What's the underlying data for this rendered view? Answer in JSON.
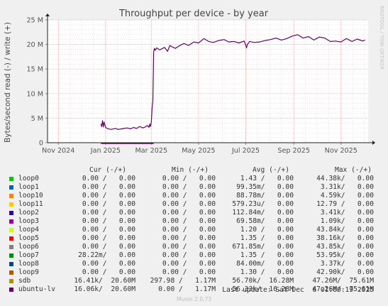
{
  "chart_data": {
    "type": "line",
    "title": "Throughput per device - by year",
    "ylabel": "Bytes/second read (-) / write (+)",
    "watermark": "RRDTOOL / TOBI OETIKER",
    "x_ticks": [
      "Nov 2024",
      "Jan 2025",
      "Mar 2025",
      "May 2025",
      "Jul 2025",
      "Sep 2025",
      "Nov 2025"
    ],
    "y_ticks": [
      "0",
      "5 M",
      "10 M",
      "15 M",
      "20 M",
      "25 M"
    ],
    "ylim": [
      0,
      25000000
    ],
    "xlim": [
      "2024-10-18",
      "2025-12-06"
    ],
    "grid": true,
    "series": [
      {
        "name": "ubuntu-lv",
        "color": "#660066",
        "x": [
          "2024-12-26",
          "2024-12-27",
          "2024-12-28",
          "2024-12-29",
          "2024-12-30",
          "2024-12-31",
          "2025-01-01",
          "2025-01-03",
          "2025-01-05",
          "2025-01-08",
          "2025-01-11",
          "2025-01-14",
          "2025-01-17",
          "2025-01-21",
          "2025-01-25",
          "2025-01-29",
          "2025-02-02",
          "2025-02-06",
          "2025-02-10",
          "2025-02-14",
          "2025-02-18",
          "2025-02-21",
          "2025-02-24",
          "2025-02-26",
          "2025-02-27",
          "2025-02-28",
          "2025-03-01",
          "2025-03-02",
          "2025-03-03",
          "2025-03-04",
          "2025-03-05",
          "2025-03-06",
          "2025-03-08",
          "2025-03-12",
          "2025-03-18",
          "2025-03-22",
          "2025-03-25",
          "2025-03-28",
          "2025-04-01",
          "2025-04-06",
          "2025-04-12",
          "2025-04-18",
          "2025-04-25",
          "2025-05-01",
          "2025-05-08",
          "2025-05-14",
          "2025-05-20",
          "2025-05-27",
          "2025-06-03",
          "2025-06-09",
          "2025-06-16",
          "2025-06-22",
          "2025-06-29",
          "2025-07-01",
          "2025-07-02",
          "2025-07-03",
          "2025-07-06",
          "2025-07-12",
          "2025-07-19",
          "2025-07-26",
          "2025-08-02",
          "2025-08-09",
          "2025-08-16",
          "2025-08-23",
          "2025-08-30",
          "2025-09-06",
          "2025-09-13",
          "2025-09-20",
          "2025-09-27",
          "2025-10-04",
          "2025-10-11",
          "2025-10-18",
          "2025-10-25",
          "2025-11-01",
          "2025-11-08",
          "2025-11-15",
          "2025-11-22",
          "2025-11-29",
          "2025-12-02"
        ],
        "values": [
          3800000,
          3300000,
          4500000,
          3200000,
          4200000,
          3600000,
          3100000,
          2900000,
          2800000,
          2700000,
          2800000,
          2900000,
          2700000,
          2800000,
          2900000,
          3000000,
          2800000,
          3100000,
          2900000,
          3300000,
          3000000,
          3200000,
          3500000,
          3100000,
          3800000,
          3300000,
          4100000,
          7000000,
          8500000,
          18500000,
          19200000,
          18800000,
          19300000,
          18900000,
          19400000,
          18600000,
          19800000,
          19500000,
          19200000,
          19700000,
          20200000,
          19800000,
          20500000,
          20300000,
          21200000,
          20600000,
          20400000,
          20800000,
          21000000,
          20500000,
          20600000,
          20300000,
          20700000,
          19800000,
          19300000,
          20000000,
          20600000,
          20400000,
          20500000,
          20800000,
          21000000,
          21300000,
          20900000,
          21200000,
          21700000,
          22000000,
          21300000,
          21600000,
          20900000,
          21500000,
          21300000,
          20600000,
          20700000,
          20500000,
          21200000,
          20600000,
          21100000,
          20700000,
          20900000
        ]
      }
    ]
  },
  "legend": {
    "headers": {
      "cur": "Cur (-/+)",
      "min": "Min (-/+)",
      "avg": "Avg (-/+)",
      "max": "Max (-/+)"
    },
    "rows": [
      {
        "name": "loop0",
        "color": "#00cc00",
        "cur": "0.00 /   0.00",
        "min": "0.00 /   0.00",
        "avg": "1.43 /   0.00",
        "max": "44.38k/   0.00"
      },
      {
        "name": "loop1",
        "color": "#0066b3",
        "cur": "0.00 /   0.00",
        "min": "0.00 /   0.00",
        "avg": "99.35m/   0.00",
        "max": "3.31k/   0.00"
      },
      {
        "name": "loop10",
        "color": "#ff8000",
        "cur": "0.00 /   0.00",
        "min": "0.00 /   0.00",
        "avg": "88.78m/   0.00",
        "max": "4.59k/   0.00"
      },
      {
        "name": "loop11",
        "color": "#ffcc00",
        "cur": "0.00 /   0.00",
        "min": "0.00 /   0.00",
        "avg": "579.23u/   0.00",
        "max": "12.79 /   0.00"
      },
      {
        "name": "loop2",
        "color": "#330099",
        "cur": "0.00 /   0.00",
        "min": "0.00 /   0.00",
        "avg": "112.84m/   0.00",
        "max": "3.41k/   0.00"
      },
      {
        "name": "loop3",
        "color": "#990099",
        "cur": "0.00 /   0.00",
        "min": "0.00 /   0.00",
        "avg": "69.58m/   0.00",
        "max": "1.09k/   0.00"
      },
      {
        "name": "loop4",
        "color": "#ccff00",
        "cur": "0.00 /   0.00",
        "min": "0.00 /   0.00",
        "avg": "1.20 /   0.00",
        "max": "43.84k/   0.00"
      },
      {
        "name": "loop5",
        "color": "#ff0000",
        "cur": "0.00 /   0.00",
        "min": "0.00 /   0.00",
        "avg": "1.35 /   0.00",
        "max": "38.16k/   0.00"
      },
      {
        "name": "loop6",
        "color": "#808080",
        "cur": "0.00 /   0.00",
        "min": "0.00 /   0.00",
        "avg": "671.85m/   0.00",
        "max": "43.85k/   0.00"
      },
      {
        "name": "loop7",
        "color": "#008f00",
        "cur": "28.22m/   0.00",
        "min": "0.00 /   0.00",
        "avg": "1.35 /   0.00",
        "max": "53.95k/   0.00"
      },
      {
        "name": "loop8",
        "color": "#00487d",
        "cur": "0.00 /   0.00",
        "min": "0.00 /   0.00",
        "avg": "84.00m/   0.00",
        "max": "3.37k/   0.00"
      },
      {
        "name": "loop9",
        "color": "#b35a00",
        "cur": "0.00 /   0.00",
        "min": "0.00 /   0.00",
        "avg": "1.30 /   0.00",
        "max": "42.90k/   0.00"
      },
      {
        "name": "sdb",
        "color": "#b38f00",
        "cur": "16.41k/  20.60M",
        "min": "297.98 /   1.17M",
        "avg": "56.70k/  16.28M",
        "max": "47.26M/  75.61M"
      },
      {
        "name": "ubuntu-lv",
        "color": "#6b006b",
        "cur": "16.06k/  20.60M",
        "min": "0.00 /   1.17M",
        "avg": "56.33k/  16.28M",
        "max": "47.26M/  75.61M"
      }
    ]
  },
  "last_update": "Last update: Sat Dec  6 01:00:19 2025",
  "credit": "Munin 2.0.73"
}
